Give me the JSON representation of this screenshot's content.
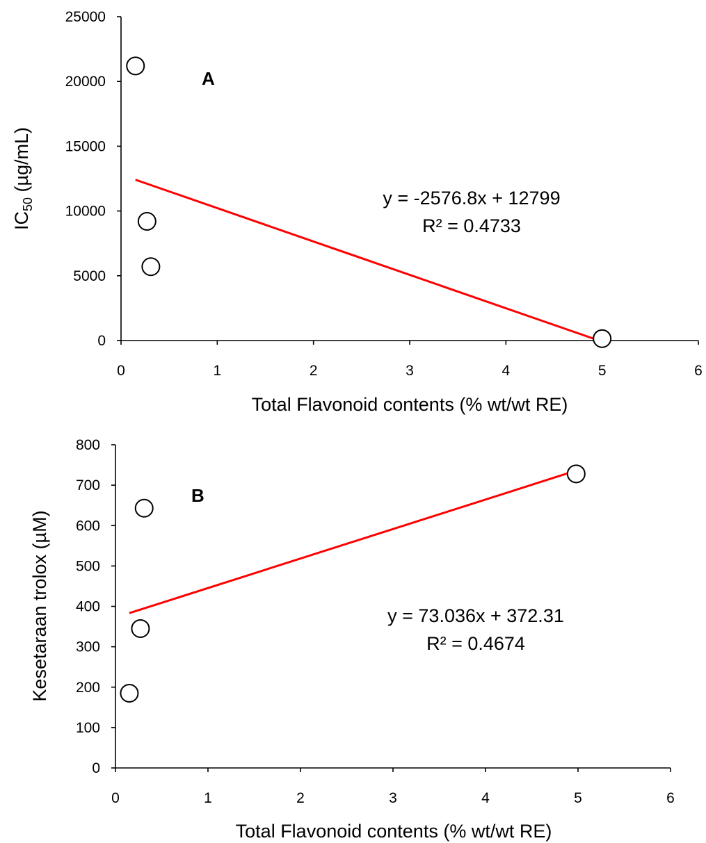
{
  "chart_data": [
    {
      "type": "scatter",
      "panel_label": "A",
      "xlabel": "Total Flavonoid contents (% wt/wt RE)",
      "ylabel_main": "IC",
      "ylabel_sub": "50",
      "ylabel_unit": " (µg/mL)",
      "xlim": [
        0,
        6
      ],
      "ylim": [
        0,
        25000
      ],
      "x_ticks": [
        0,
        1,
        2,
        3,
        4,
        5,
        6
      ],
      "y_ticks": [
        0,
        5000,
        10000,
        15000,
        20000,
        25000
      ],
      "points": [
        {
          "x": 0.15,
          "y": 21200
        },
        {
          "x": 0.27,
          "y": 9200
        },
        {
          "x": 0.31,
          "y": 5700
        },
        {
          "x": 5.0,
          "y": 150
        }
      ],
      "trendline": {
        "slope": -2576.8,
        "intercept": 12799,
        "x_range": [
          0.15,
          4.97
        ]
      },
      "equation": "y = -2576.8x + 12799",
      "r2": "R² = 0.4733",
      "grid": false,
      "legend": "none"
    },
    {
      "type": "scatter",
      "panel_label": "B",
      "xlabel": "Total Flavonoid contents (% wt/wt RE)",
      "ylabel": "Kesetaraan trolox (µM)",
      "xlim": [
        0,
        6
      ],
      "ylim": [
        0,
        800
      ],
      "x_ticks": [
        0,
        1,
        2,
        3,
        4,
        5,
        6
      ],
      "y_ticks": [
        0,
        100,
        200,
        300,
        400,
        500,
        600,
        700,
        800
      ],
      "points": [
        {
          "x": 0.15,
          "y": 185
        },
        {
          "x": 0.27,
          "y": 345
        },
        {
          "x": 0.31,
          "y": 643
        },
        {
          "x": 4.98,
          "y": 728
        }
      ],
      "trendline": {
        "slope": 73.036,
        "intercept": 372.31,
        "x_range": [
          0.15,
          4.97
        ]
      },
      "equation": "y = 73.036x + 372.31",
      "r2": "R² = 0.4674",
      "grid": false,
      "legend": "none"
    }
  ]
}
